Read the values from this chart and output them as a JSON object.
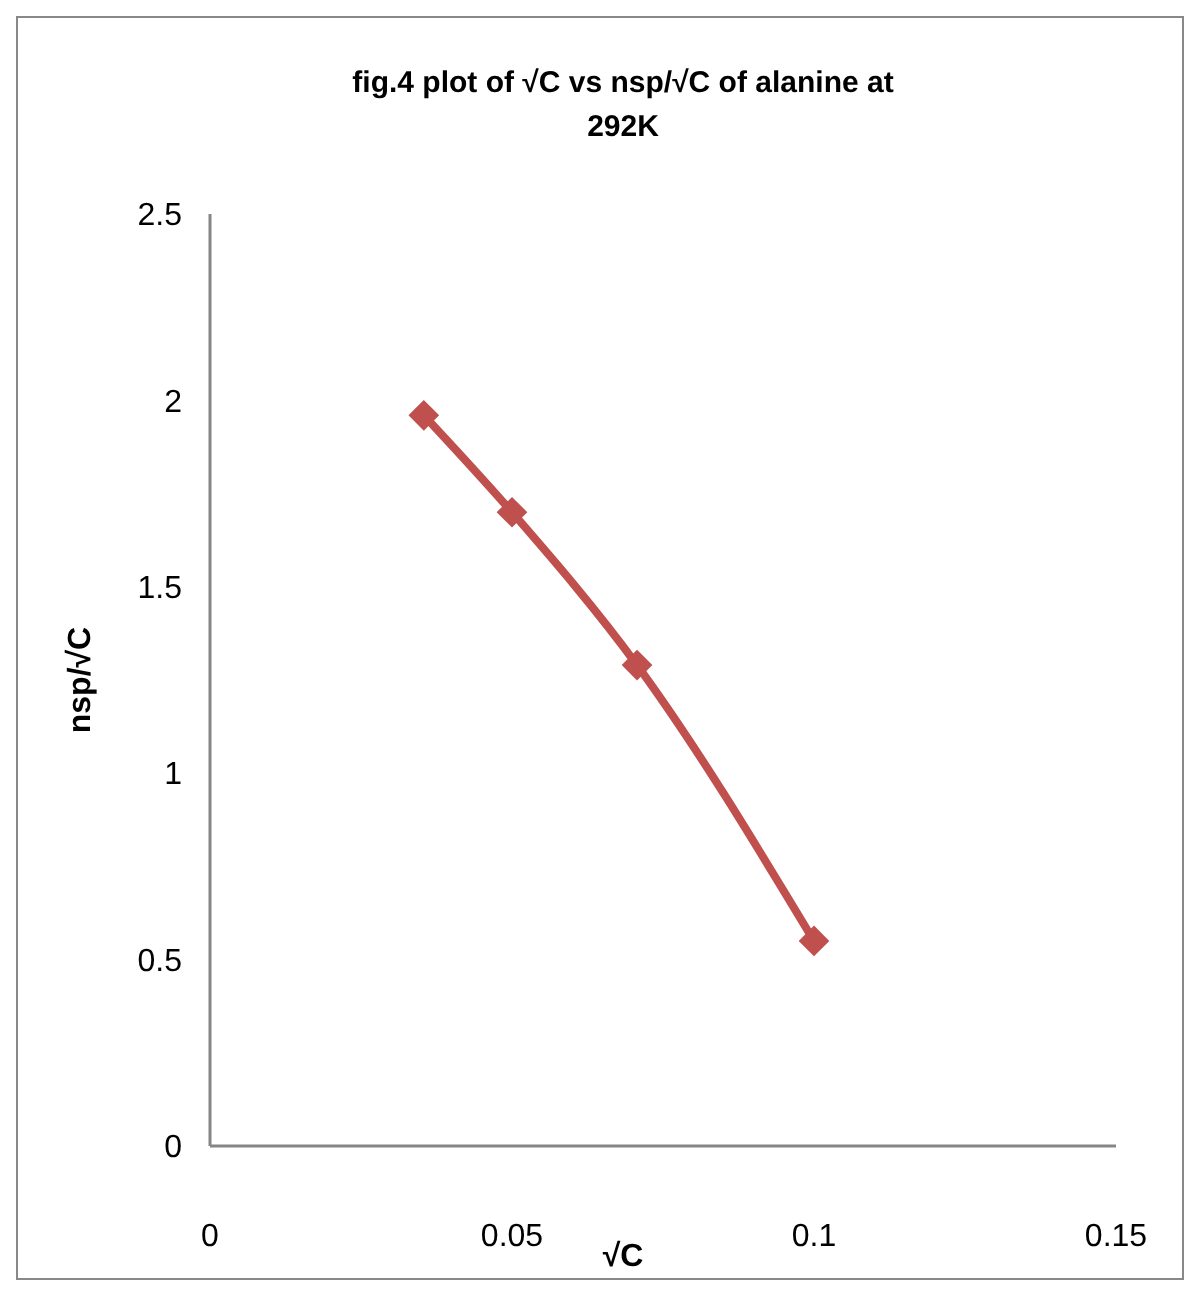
{
  "chart_data": {
    "type": "line",
    "title": "fig.4 plot of √C vs nsp/√C of alanine at 292K",
    "xlabel": "√C",
    "ylabel": "nsp/√C",
    "x": [
      0.0354,
      0.05,
      0.0707,
      0.1
    ],
    "series": [
      {
        "color": "#c0504d",
        "values": [
          1.96,
          1.7,
          1.29,
          0.55
        ]
      }
    ],
    "xlim": [
      0,
      0.15
    ],
    "xticks": [
      0,
      0.05,
      0.1,
      0.15
    ],
    "ylim": [
      0,
      2.5
    ],
    "yticks": [
      0,
      0.5,
      1,
      1.5,
      2,
      2.5
    ],
    "grid": false,
    "marker": "diamond",
    "line_style": "solid"
  }
}
